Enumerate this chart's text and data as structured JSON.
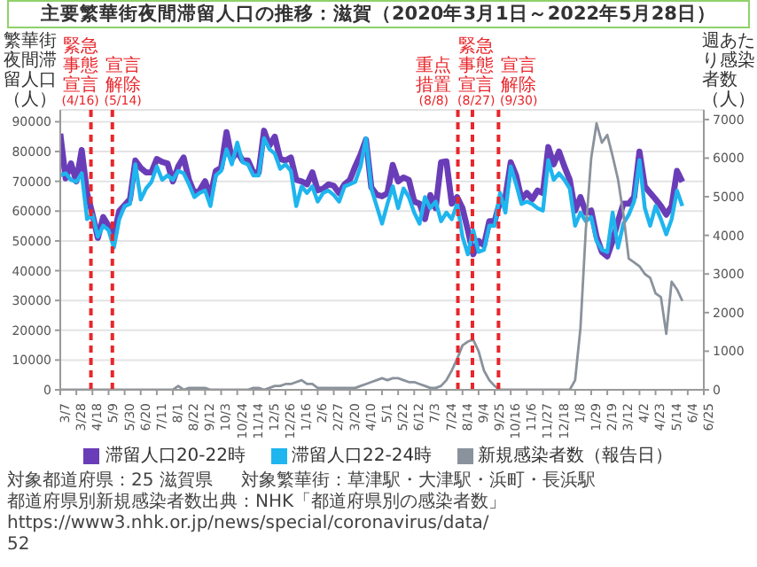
{
  "chart_data": {
    "type": "line",
    "title": "主要繁華街夜間滞留人口の推移：滋賀（2020年3月1日～2022年5月28日）",
    "ylabel": "繁華街夜間滞留人口（人）",
    "y2label": "週あたり感染者数（人）",
    "x": [
      "2020-03-07",
      "2020-03-14",
      "2020-03-21",
      "2020-03-28",
      "2020-04-04",
      "2020-04-11",
      "2020-04-18",
      "2020-04-25",
      "2020-05-02",
      "2020-05-09",
      "2020-05-16",
      "2020-05-23",
      "2020-05-30",
      "2020-06-06",
      "2020-06-13",
      "2020-06-20",
      "2020-06-27",
      "2020-07-04",
      "2020-07-11",
      "2020-07-18",
      "2020-07-25",
      "2020-08-01",
      "2020-08-08",
      "2020-08-15",
      "2020-08-22",
      "2020-08-29",
      "2020-09-05",
      "2020-09-12",
      "2020-09-19",
      "2020-09-26",
      "2020-10-03",
      "2020-10-10",
      "2020-10-17",
      "2020-10-24",
      "2020-10-31",
      "2020-11-07",
      "2020-11-14",
      "2020-11-21",
      "2020-11-28",
      "2020-12-05",
      "2020-12-12",
      "2020-12-19",
      "2020-12-26",
      "2021-01-02",
      "2021-01-09",
      "2021-01-16",
      "2021-01-23",
      "2021-01-30",
      "2021-02-06",
      "2021-02-13",
      "2021-02-20",
      "2021-02-27",
      "2021-03-06",
      "2021-03-13",
      "2021-03-20",
      "2021-03-27",
      "2021-04-03",
      "2021-04-10",
      "2021-04-17",
      "2021-04-24",
      "2021-05-01",
      "2021-05-08",
      "2021-05-15",
      "2021-05-22",
      "2021-05-29",
      "2021-06-05",
      "2021-06-12",
      "2021-06-19",
      "2021-06-26",
      "2021-07-03",
      "2021-07-10",
      "2021-07-17",
      "2021-07-24",
      "2021-07-31",
      "2021-08-07",
      "2021-08-14",
      "2021-08-21",
      "2021-08-28",
      "2021-09-04",
      "2021-09-11",
      "2021-09-18",
      "2021-09-25",
      "2021-10-02",
      "2021-10-09",
      "2021-10-16",
      "2021-10-23",
      "2021-10-30",
      "2021-11-06",
      "2021-11-13",
      "2021-11-20",
      "2021-11-27",
      "2021-12-04",
      "2021-12-11",
      "2021-12-18",
      "2021-12-25",
      "2022-01-01",
      "2022-01-08",
      "2022-01-15",
      "2022-01-22",
      "2022-01-29",
      "2022-02-05",
      "2022-02-12",
      "2022-02-19",
      "2022-02-26",
      "2022-03-05",
      "2022-03-12",
      "2022-03-19",
      "2022-03-26",
      "2022-04-02",
      "2022-04-09",
      "2022-04-16",
      "2022-04-23",
      "2022-04-30",
      "2022-05-07",
      "2022-05-14",
      "2022-05-21",
      "2022-05-28"
    ],
    "series": [
      {
        "name": "滞留人口20-22時",
        "color": "#6a3db8",
        "values": [
          86000,
          71000,
          76000,
          70000,
          80500,
          66000,
          59000,
          51000,
          58000,
          55000,
          52000,
          60000,
          62000,
          64000,
          77000,
          74500,
          73000,
          73000,
          77500,
          76500,
          76000,
          70000,
          75000,
          78000,
          70500,
          66000,
          67000,
          70000,
          65000,
          73500,
          74500,
          86500,
          77500,
          80000,
          77000,
          77000,
          73000,
          73000,
          87000,
          82000,
          85000,
          77500,
          77000,
          78000,
          70500,
          70000,
          69000,
          73000,
          67000,
          67500,
          69000,
          68500,
          66000,
          69000,
          70500,
          75000,
          79000,
          84000,
          68000,
          65500,
          65000,
          66000,
          75500,
          70000,
          71300,
          70500,
          63200,
          62500,
          57300,
          65400,
          61000,
          76400,
          76700,
          62500,
          64700,
          61000,
          53600,
          45500,
          50000,
          48500,
          56600,
          56600,
          63200,
          64700,
          76400,
          72000,
          64000,
          66100,
          64000,
          66900,
          66100,
          81500,
          75700,
          80000,
          75000,
          70500,
          60200,
          64700,
          59500,
          60200,
          51400,
          46300,
          44800,
          50000,
          56600,
          62500,
          62500,
          64700,
          80000,
          68300,
          66100,
          64000,
          61700,
          58800,
          61700,
          73500,
          69800
        ]
      },
      {
        "name": "滞留人口22-24時",
        "color": "#1fb5ee",
        "values": [
          72000,
          72700,
          70500,
          69800,
          72700,
          57300,
          58800,
          51400,
          55100,
          53600,
          47700,
          57300,
          61700,
          62400,
          75700,
          63900,
          67600,
          69800,
          75000,
          70500,
          72000,
          70500,
          73500,
          72700,
          69000,
          64700,
          66100,
          66900,
          61700,
          72000,
          73500,
          80800,
          75700,
          83000,
          76400,
          75700,
          72000,
          72000,
          84500,
          80800,
          79300,
          74200,
          75700,
          73500,
          61700,
          68300,
          66100,
          68300,
          63200,
          66100,
          66900,
          65400,
          63200,
          68300,
          69000,
          69800,
          75000,
          84500,
          67600,
          61700,
          55800,
          62400,
          68300,
          61000,
          67600,
          64700,
          59500,
          55800,
          64700,
          61000,
          63200,
          56600,
          59500,
          57300,
          62400,
          51400,
          45500,
          53600,
          46300,
          47000,
          55100,
          55100,
          66100,
          59500,
          75000,
          69000,
          62400,
          63200,
          62400,
          61000,
          60200,
          77100,
          70500,
          72700,
          70500,
          67600,
          55100,
          59500,
          56600,
          58000,
          50000,
          47000,
          46300,
          59500,
          47700,
          55800,
          58800,
          63200,
          77100,
          61000,
          55100,
          61700,
          57300,
          52200,
          57300,
          66900,
          61700
        ]
      },
      {
        "name": "新規感染者数（報告日）",
        "color": "#8a929c",
        "axis": "y2",
        "values": [
          0,
          0,
          0,
          0,
          0,
          0,
          0,
          0,
          0,
          0,
          0,
          0,
          0,
          0,
          0,
          0,
          0,
          0,
          0,
          0,
          0,
          0,
          100,
          0,
          50,
          50,
          50,
          50,
          0,
          0,
          0,
          0,
          0,
          0,
          0,
          0,
          50,
          50,
          0,
          50,
          100,
          100,
          150,
          150,
          200,
          250,
          150,
          150,
          50,
          50,
          50,
          50,
          50,
          50,
          50,
          50,
          100,
          150,
          200,
          250,
          300,
          250,
          300,
          300,
          250,
          200,
          200,
          150,
          100,
          50,
          50,
          100,
          250,
          500,
          800,
          1150,
          1250,
          1300,
          1000,
          500,
          250,
          100,
          0,
          0,
          0,
          0,
          0,
          0,
          0,
          0,
          0,
          0,
          0,
          0,
          0,
          0,
          250,
          1600,
          4150,
          6000,
          6900,
          6400,
          6600,
          6050,
          5450,
          4550,
          3400,
          3300,
          3200,
          3000,
          2900,
          2500,
          2400,
          1450,
          2800,
          2600,
          2300
        ]
      }
    ],
    "xlim": [
      "2020-03-07",
      "2022-06-25"
    ],
    "xticks": [
      {
        "value": "2020-03-07",
        "label": "3/7"
      },
      {
        "value": "2020-03-28",
        "label": "3/28"
      },
      {
        "value": "2020-04-18",
        "label": "4/18"
      },
      {
        "value": "2020-05-09",
        "label": "5/9"
      },
      {
        "value": "2020-05-30",
        "label": "5/30"
      },
      {
        "value": "2020-06-20",
        "label": "6/20"
      },
      {
        "value": "2020-07-11",
        "label": "7/11"
      },
      {
        "value": "2020-08-01",
        "label": "8/1"
      },
      {
        "value": "2020-08-22",
        "label": "8/22"
      },
      {
        "value": "2020-09-12",
        "label": "9/12"
      },
      {
        "value": "2020-10-03",
        "label": "10/3"
      },
      {
        "value": "2020-10-24",
        "label": "10/24"
      },
      {
        "value": "2020-11-14",
        "label": "11/14"
      },
      {
        "value": "2020-12-05",
        "label": "12/5"
      },
      {
        "value": "2020-12-26",
        "label": "12/26"
      },
      {
        "value": "2021-01-16",
        "label": "1/16"
      },
      {
        "value": "2021-02-06",
        "label": "2/6"
      },
      {
        "value": "2021-02-27",
        "label": "2/27"
      },
      {
        "value": "2021-03-20",
        "label": "3/20"
      },
      {
        "value": "2021-04-10",
        "label": "4/10"
      },
      {
        "value": "2021-05-01",
        "label": "5/1"
      },
      {
        "value": "2021-05-22",
        "label": "5/22"
      },
      {
        "value": "2021-06-12",
        "label": "6/12"
      },
      {
        "value": "2021-07-03",
        "label": "7/3"
      },
      {
        "value": "2021-07-24",
        "label": "7/24"
      },
      {
        "value": "2021-08-14",
        "label": "8/14"
      },
      {
        "value": "2021-09-04",
        "label": "9/4"
      },
      {
        "value": "2021-09-25",
        "label": "9/25"
      },
      {
        "value": "2021-10-16",
        "label": "10/16"
      },
      {
        "value": "2021-11-06",
        "label": "11/6"
      },
      {
        "value": "2021-11-27",
        "label": "11/27"
      },
      {
        "value": "2021-12-18",
        "label": "12/18"
      },
      {
        "value": "2022-01-08",
        "label": "1/8"
      },
      {
        "value": "2022-01-29",
        "label": "1/29"
      },
      {
        "value": "2022-02-19",
        "label": "2/19"
      },
      {
        "value": "2022-03-12",
        "label": "3/12"
      },
      {
        "value": "2022-04-02",
        "label": "4/2"
      },
      {
        "value": "2022-04-23",
        "label": "4/23"
      },
      {
        "value": "2022-05-14",
        "label": "5/14"
      },
      {
        "value": "2022-06-04",
        "label": "6/4"
      },
      {
        "value": "2022-06-25",
        "label": "6/25"
      }
    ],
    "ylim": [
      0,
      94000
    ],
    "yticks": [
      0,
      10000,
      20000,
      30000,
      40000,
      50000,
      60000,
      70000,
      80000,
      90000
    ],
    "y2lim": [
      0,
      7250
    ],
    "y2ticks": [
      0,
      1000,
      2000,
      3000,
      4000,
      5000,
      6000,
      7000
    ],
    "ref_lines": [
      {
        "axis": "x",
        "value": "2020-04-16",
        "label": "緊急事態宣言(4/16)",
        "color": "#e8262b",
        "line_style": "dashed"
      },
      {
        "axis": "x",
        "value": "2020-05-14",
        "label": "宣言解除(5/14)",
        "color": "#e8262b",
        "line_style": "dashed"
      },
      {
        "axis": "x",
        "value": "2021-08-08",
        "label": "重点措置(8/8)",
        "color": "#e8262b",
        "line_style": "dashed"
      },
      {
        "axis": "x",
        "value": "2021-08-27",
        "label": "緊急事態宣言(8/27)",
        "color": "#e8262b",
        "line_style": "dashed"
      },
      {
        "axis": "x",
        "value": "2021-09-30",
        "label": "宣言解除(9/30)",
        "color": "#e8262b",
        "line_style": "dashed"
      }
    ],
    "grid": "y",
    "legend": "bottom",
    "annotations": [
      "対象都道府県：25 滋賀県",
      "対象繁華街：草津駅・大津駅・浜町・長浜駅",
      "都道府県別新規感染者数出典：NHK「都道府県別の感染者数」https://www3.nhk.or.jp/news/special/coronavirus/data/",
      "52"
    ]
  }
}
